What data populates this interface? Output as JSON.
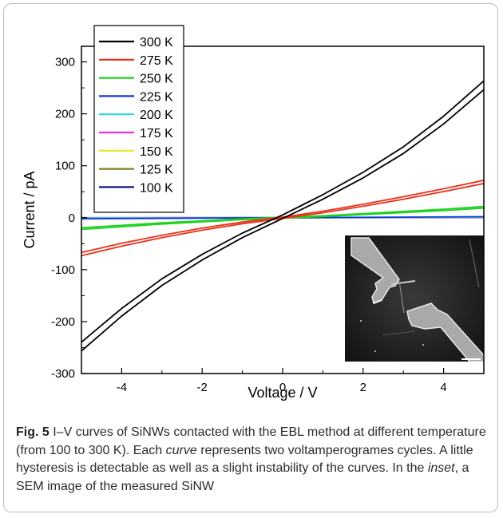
{
  "chart_data": {
    "type": "line",
    "xlabel": "Voltage / V",
    "ylabel": "Current / pA",
    "xlim": [
      -5,
      5
    ],
    "ylim": [
      -300,
      330
    ],
    "xticks": [
      -4,
      -2,
      0,
      2,
      4
    ],
    "yticks": [
      -300,
      -200,
      -100,
      0,
      100,
      200,
      300
    ],
    "grid": false,
    "legend_position": "top-left",
    "series": [
      {
        "name": "300 K",
        "color": "#000000",
        "points": [
          [
            -5,
            -248
          ],
          [
            -4,
            -182
          ],
          [
            -3,
            -124
          ],
          [
            -2,
            -76
          ],
          [
            -1,
            -34
          ],
          [
            0,
            2
          ],
          [
            1,
            40
          ],
          [
            2,
            82
          ],
          [
            3,
            130
          ],
          [
            4,
            188
          ],
          [
            5,
            255
          ]
        ]
      },
      {
        "name": "275 K",
        "color": "#e8311a",
        "points": [
          [
            -5,
            -70
          ],
          [
            -4,
            -52
          ],
          [
            -3,
            -36
          ],
          [
            -2,
            -22
          ],
          [
            -1,
            -10
          ],
          [
            0,
            0
          ],
          [
            1,
            11
          ],
          [
            2,
            24
          ],
          [
            3,
            38
          ],
          [
            4,
            53
          ],
          [
            5,
            69
          ]
        ]
      },
      {
        "name": "250 K",
        "color": "#1fd21f",
        "points": [
          [
            -5,
            -21
          ],
          [
            -4,
            -16
          ],
          [
            -3,
            -11
          ],
          [
            -2,
            -7
          ],
          [
            -1,
            -3
          ],
          [
            0,
            0
          ],
          [
            1,
            3
          ],
          [
            2,
            7
          ],
          [
            3,
            11
          ],
          [
            4,
            15
          ],
          [
            5,
            20
          ]
        ]
      },
      {
        "name": "225 K",
        "color": "#1238d6",
        "points": [
          [
            -5,
            -2
          ],
          [
            5,
            2
          ]
        ]
      },
      {
        "name": "200 K",
        "color": "#2fd8d8",
        "points": [
          [
            -5,
            -1
          ],
          [
            5,
            1
          ]
        ]
      },
      {
        "name": "175 K",
        "color": "#e62ee6",
        "points": [
          [
            -5,
            -0.5
          ],
          [
            5,
            0.5
          ]
        ]
      },
      {
        "name": "150 K",
        "color": "#e6e626",
        "points": [
          [
            -5,
            -0.3
          ],
          [
            5,
            0.3
          ]
        ]
      },
      {
        "name": "125 K",
        "color": "#808016",
        "points": [
          [
            -5,
            -0.2
          ],
          [
            5,
            0.2
          ]
        ]
      },
      {
        "name": "100 K",
        "color": "#16168c",
        "points": [
          [
            -5,
            -0.1
          ],
          [
            5,
            0.1
          ]
        ]
      }
    ]
  },
  "caption": {
    "fig_label": "Fig. 5",
    "text_1": " I–V curves of SiNWs contacted with the EBL method at different temperature (from 100 to 300 K). Each ",
    "curve_word": "curve",
    "text_2": " represents two voltamperogrames cycles. A little hysteresis is detectable as well as a slight instability of the curves. In the ",
    "inset_word": "inset",
    "text_3": ", a SEM image of the measured SiNW"
  }
}
